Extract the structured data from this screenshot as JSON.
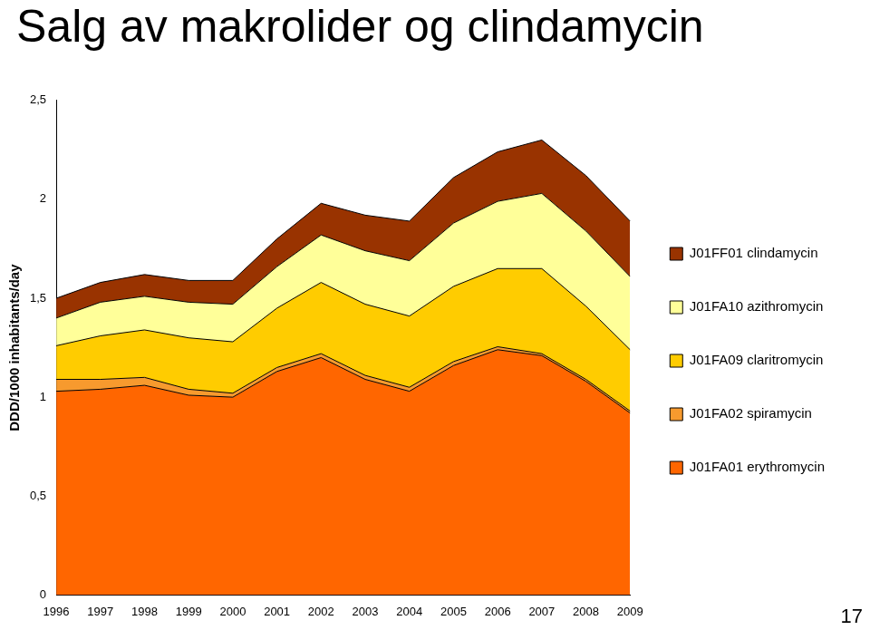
{
  "chart_data": {
    "type": "area",
    "title": "Salg av makrolider og clindamycin",
    "y_label": "DDD/1000 inhabitants/day",
    "annotations": [
      "17"
    ],
    "categories": [
      "1996",
      "1997",
      "1998",
      "1999",
      "2000",
      "2001",
      "2002",
      "2003",
      "2004",
      "2005",
      "2006",
      "2007",
      "2008",
      "2009"
    ],
    "series": [
      {
        "name": "J01FA01 erythromycin",
        "color": "#ff6600",
        "values": [
          1.03,
          1.04,
          1.06,
          1.01,
          1.0,
          1.13,
          1.2,
          1.09,
          1.03,
          1.16,
          1.24,
          1.21,
          1.08,
          0.92
        ]
      },
      {
        "name": "J01FA02 spiramycin",
        "color": "#f79a2e",
        "values": [
          0.06,
          0.05,
          0.04,
          0.03,
          0.02,
          0.02,
          0.02,
          0.02,
          0.02,
          0.02,
          0.015,
          0.01,
          0.01,
          0.01
        ]
      },
      {
        "name": "J01FA09 claritromycin",
        "color": "#ffcc00",
        "values": [
          0.17,
          0.22,
          0.24,
          0.26,
          0.26,
          0.3,
          0.36,
          0.36,
          0.36,
          0.38,
          0.395,
          0.43,
          0.37,
          0.31
        ]
      },
      {
        "name": "J01FA10 azithromycin",
        "color": "#ffff99",
        "values": [
          0.14,
          0.17,
          0.17,
          0.18,
          0.19,
          0.21,
          0.24,
          0.27,
          0.28,
          0.32,
          0.34,
          0.38,
          0.38,
          0.37
        ]
      },
      {
        "name": "J01FF01 clindamycin",
        "color": "#993300",
        "values": [
          0.1,
          0.1,
          0.11,
          0.11,
          0.12,
          0.14,
          0.16,
          0.18,
          0.2,
          0.23,
          0.25,
          0.27,
          0.28,
          0.28
        ]
      }
    ],
    "ylim": [
      0,
      2.5
    ],
    "yticks": [
      0,
      {
        "value": 0.5,
        "label": "0,5"
      },
      1,
      {
        "value": 1.5,
        "label": "1,5"
      },
      2,
      {
        "value": 2.5,
        "label": "2,5"
      }
    ],
    "stacked": true,
    "grid": false,
    "legend": "right"
  }
}
